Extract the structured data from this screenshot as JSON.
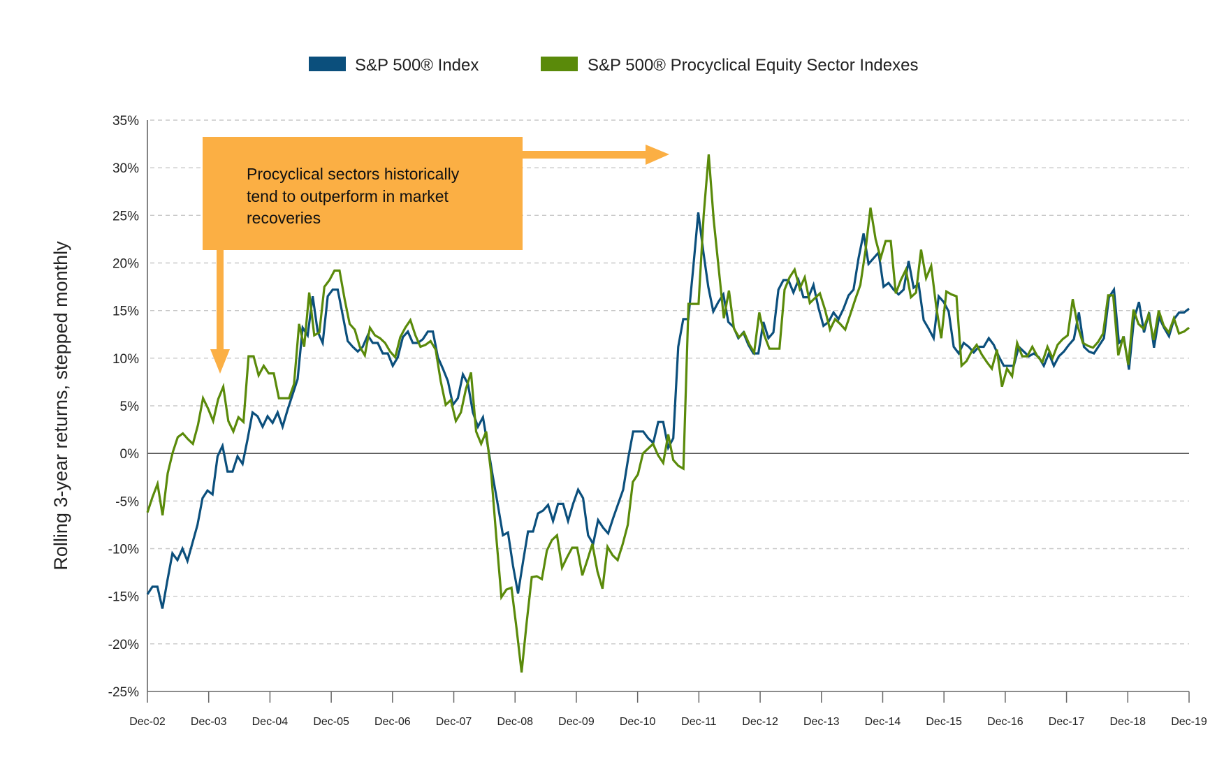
{
  "chart_data": {
    "type": "line",
    "title": "",
    "xlabel": "",
    "ylabel": "Rolling 3-year returns, stepped monthly",
    "ylim": [
      -25,
      35
    ],
    "yticks": [
      35,
      30,
      25,
      20,
      15,
      10,
      5,
      0,
      -5,
      -10,
      -15,
      -20,
      -25
    ],
    "ytick_labels": [
      "35%",
      "30%",
      "25%",
      "20%",
      "15%",
      "10%",
      "5%",
      "0%",
      "-5%",
      "-10%",
      "-15%",
      "-20%",
      "-25%"
    ],
    "xtick_labels": [
      "Dec-02",
      "Dec-03",
      "Dec-04",
      "Dec-05",
      "Dec-06",
      "Dec-07",
      "Dec-08",
      "Dec-09",
      "Dec-10",
      "Dec-11",
      "Dec-12",
      "Dec-13",
      "Dec-14",
      "Dec-15",
      "Dec-16",
      "Dec-17",
      "Dec-18",
      "Dec-19"
    ],
    "x_frequency": "monthly",
    "grid": "horizontal dashed",
    "legend_position": "top-center",
    "series": [
      {
        "name": "S&P 500® Index",
        "color": "#0b4f7c",
        "values": [
          -14.8,
          -14,
          -14,
          -16.3,
          -13.3,
          -10.5,
          -11.2,
          -10,
          -11.3,
          -9.4,
          -7.5,
          -4.7,
          -3.9,
          -4.3,
          -0.3,
          0.8,
          -1.9,
          -1.9,
          -0.3,
          -1.1,
          1.5,
          4.3,
          3.9,
          2.8,
          3.9,
          3.2,
          4.3,
          2.8,
          4.6,
          6.2,
          7.8,
          13.2,
          12.4,
          16.5,
          12.8,
          11.6,
          16.5,
          17.2,
          17.2,
          14.5,
          11.8,
          11.2,
          10.7,
          11.2,
          12.4,
          11.6,
          11.6,
          10.5,
          10.5,
          9.2,
          10.1,
          12.2,
          12.8,
          11.6,
          11.6,
          12,
          12.8,
          12.8,
          10.1,
          8.9,
          7.6,
          5.1,
          5.8,
          8.3,
          7.3,
          4.3,
          2.8,
          3.8,
          0.7,
          -2.5,
          -5.5,
          -8.6,
          -8.3,
          -11.8,
          -14.7,
          -11.4,
          -8.2,
          -8.2,
          -6.3,
          -6,
          -5.4,
          -7.1,
          -5.3,
          -5.3,
          -7.1,
          -5.3,
          -3.8,
          -4.7,
          -8.6,
          -9.5,
          -7,
          -7.8,
          -8.4,
          -6.8,
          -5.3,
          -3.8,
          -0.5,
          2.3,
          2.3,
          2.3,
          1.6,
          1.1,
          3.3,
          3.3,
          0.6,
          1.6,
          11.2,
          14.1,
          14.1,
          19.5,
          25.3,
          21.2,
          17.5,
          14.9,
          15.9,
          16.7,
          13.8,
          13.3,
          12.1,
          12.7,
          11.4,
          10.5,
          10.5,
          13.8,
          12.1,
          12.7,
          17.2,
          18.2,
          18.2,
          16.9,
          18.2,
          16.4,
          16.4,
          17.7,
          15.3,
          13.4,
          13.8,
          14.8,
          14.1,
          15.2,
          16.6,
          17.2,
          20.5,
          23.1,
          19.9,
          20.5,
          21.1,
          17.5,
          17.9,
          17.2,
          16.7,
          17.2,
          20.2,
          17.4,
          17.8,
          14,
          13.1,
          12.1,
          16.5,
          15.9,
          14.9,
          11.2,
          10.5,
          11.6,
          11.2,
          10.6,
          11.2,
          11.2,
          12.1,
          11.4,
          10.2,
          9.2,
          9.2,
          9.2,
          11.2,
          10.7,
          10.2,
          10.5,
          10.1,
          9.2,
          10.5,
          9.2,
          10.2,
          10.7,
          11.4,
          12,
          14.8,
          11.2,
          10.7,
          10.5,
          11.3,
          12.1,
          16.4,
          17.2,
          11.6,
          12.1,
          8.8,
          14.1,
          15.9,
          12.7,
          14.8,
          11.1,
          14.3,
          13.2,
          12.3,
          14.1,
          14.8,
          14.8,
          15.2
        ]
      },
      {
        "name": "S&P 500® Procyclical Equity Sector Indexes",
        "color": "#5a8a0a",
        "values": [
          -6.2,
          -4.6,
          -3.2,
          -6.5,
          -2.1,
          0.1,
          1.7,
          2.1,
          1.5,
          1,
          3,
          5.8,
          4.7,
          3.4,
          5.7,
          7,
          3.4,
          2.3,
          3.8,
          3.3,
          10.2,
          10.2,
          8.2,
          9.2,
          8.4,
          8.4,
          5.8,
          5.8,
          5.8,
          7.3,
          13.6,
          11.2,
          16.9,
          12.4,
          12.7,
          17.5,
          18.2,
          19.2,
          19.2,
          16.2,
          13.6,
          13,
          11.2,
          10.3,
          13.2,
          12.4,
          12.1,
          11.6,
          10.7,
          10.1,
          12.2,
          13.2,
          14,
          12.4,
          11.2,
          11.4,
          11.8,
          10.9,
          7.6,
          5.1,
          5.6,
          3.4,
          4.3,
          6.8,
          8.5,
          2.3,
          1,
          2.3,
          -2.2,
          -8.8,
          -15.1,
          -14.3,
          -14.1,
          -18.4,
          -23,
          -17.8,
          -13,
          -12.9,
          -13.2,
          -10.2,
          -9.1,
          -8.6,
          -12,
          -10.9,
          -9.9,
          -9.9,
          -12.8,
          -11.2,
          -9.5,
          -12.4,
          -14.2,
          -9.8,
          -10.7,
          -11.2,
          -9.5,
          -7.5,
          -3,
          -2.2,
          0,
          0.5,
          1,
          -0.2,
          -1,
          2,
          -0.7,
          -1.3,
          -1.6,
          15.7,
          15.7,
          15.7,
          25,
          31.4,
          24.5,
          19.3,
          14.2,
          17.1,
          13.1,
          12.2,
          12.7,
          11.5,
          10.6,
          14.8,
          12.4,
          11,
          11,
          11,
          17.2,
          18.5,
          19.3,
          17.3,
          18.5,
          15.8,
          16.3,
          16.8,
          15.1,
          13,
          14.1,
          13.6,
          13,
          14.6,
          16.2,
          17.7,
          21.3,
          25.8,
          22.5,
          20.5,
          22.3,
          22.3,
          16.8,
          18.2,
          19.3,
          16.4,
          16.9,
          21.4,
          18.4,
          19.7,
          15.4,
          12.1,
          17,
          16.7,
          16.5,
          9.2,
          9.7,
          10.7,
          11.4,
          10.4,
          9.6,
          8.9,
          10.9,
          7,
          8.9,
          8.1,
          11.6,
          10.2,
          10.2,
          11.2,
          10.2,
          9.6,
          11.2,
          10,
          11.4,
          12,
          12.4,
          16.2,
          13.3,
          11.6,
          11.3,
          11.1,
          11.7,
          12.6,
          16.6,
          16.6,
          10.3,
          12.3,
          9.3,
          15.1,
          13.6,
          13.1,
          14.6,
          11.9,
          15,
          13.4,
          12.7,
          14.2,
          12.6,
          12.8,
          13.2
        ]
      }
    ],
    "annotation": {
      "text_lines": [
        "Procyclical sectors historically",
        "tend to outperform in market",
        "recoveries"
      ],
      "color": "#fbaf44",
      "arrows": [
        "down toward Dec-03",
        "right toward Dec-11 peak"
      ]
    }
  }
}
